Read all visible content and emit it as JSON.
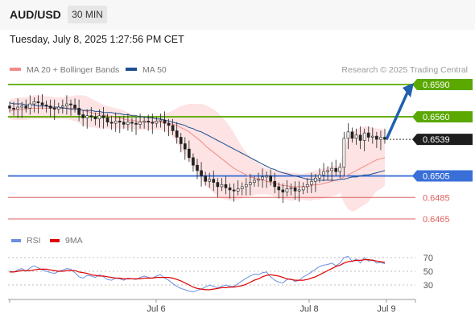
{
  "header": {
    "symbol": "AUD/USD",
    "timeframe": "30 MIN"
  },
  "timestamp": "Tuesday, July 8, 2025 1:27:56 PM CET",
  "credit": "Research © 2025 Trading Central",
  "colors": {
    "resistance": "#5aa800",
    "pivot": "#3a6fd8",
    "support": "#e06060",
    "current": "#1d1d1d",
    "ma20": "#f28c8c",
    "ma50": "#1f4f91",
    "bollinger_fill": "#fde3e3",
    "rsi": "#6a8fe0",
    "rsi_ma": "#e00000",
    "arrow": "#2060b0"
  },
  "chart_data": [
    {
      "type": "candlestick",
      "legend": [
        {
          "label": "MA 20 + Bollinger Bands",
          "color": "#f28c8c"
        },
        {
          "label": "MA 50",
          "color": "#1f4f91"
        }
      ],
      "levels": [
        {
          "value": 0.659,
          "label": "0.6590",
          "kind": "resistance"
        },
        {
          "value": 0.656,
          "label": "0.6560",
          "kind": "resistance"
        },
        {
          "value": 0.6539,
          "label": "0.6539",
          "kind": "current"
        },
        {
          "value": 0.6505,
          "label": "0.6505",
          "kind": "pivot"
        },
        {
          "value": 0.6485,
          "label": "0.6485",
          "kind": "support"
        },
        {
          "value": 0.6465,
          "label": "0.6465",
          "kind": "support"
        }
      ],
      "x_ticks": [
        "Jul 6",
        "Jul 8",
        "Jul 9"
      ],
      "ylim": [
        0.6456,
        0.6605
      ],
      "projection": {
        "from": 0.6539,
        "to": 0.659
      },
      "close": [
        0.6568,
        0.6567,
        0.6569,
        0.657,
        0.6568,
        0.6572,
        0.6574,
        0.6573,
        0.6571,
        0.657,
        0.6568,
        0.6567,
        0.6569,
        0.657,
        0.6572,
        0.6571,
        0.6568,
        0.6562,
        0.6559,
        0.6561,
        0.656,
        0.6558,
        0.6561,
        0.6559,
        0.6555,
        0.6554,
        0.6556,
        0.6555,
        0.6553,
        0.6555,
        0.6554,
        0.6553,
        0.6555,
        0.6556,
        0.6555,
        0.6554,
        0.6556,
        0.6557,
        0.6554,
        0.6552,
        0.6547,
        0.6541,
        0.6535,
        0.653,
        0.6522,
        0.6515,
        0.651,
        0.6505,
        0.65,
        0.6502,
        0.6499,
        0.6495,
        0.6497,
        0.6494,
        0.6492,
        0.6491,
        0.6493,
        0.6495,
        0.6497,
        0.6499,
        0.6501,
        0.6502,
        0.6504,
        0.6505,
        0.65,
        0.6495,
        0.6492,
        0.649,
        0.6493,
        0.6494,
        0.6491,
        0.6492,
        0.6495,
        0.6497,
        0.65,
        0.6503,
        0.6506,
        0.6509,
        0.651,
        0.6512,
        0.6509,
        0.6513,
        0.654,
        0.6546,
        0.654,
        0.6543,
        0.6538,
        0.6545,
        0.6541,
        0.6542,
        0.6539,
        0.6541,
        0.6539
      ],
      "ma20": [
        0.6566,
        0.6566,
        0.6567,
        0.6567,
        0.6567,
        0.6568,
        0.6568,
        0.6568,
        0.6568,
        0.6568,
        0.6568,
        0.6568,
        0.6568,
        0.6568,
        0.6568,
        0.6568,
        0.6568,
        0.6567,
        0.6566,
        0.6565,
        0.6564,
        0.6563,
        0.6563,
        0.6562,
        0.6561,
        0.656,
        0.6559,
        0.6559,
        0.6558,
        0.6557,
        0.6557,
        0.6556,
        0.6555,
        0.6555,
        0.6555,
        0.6555,
        0.6555,
        0.6555,
        0.6555,
        0.6554,
        0.6553,
        0.6552,
        0.655,
        0.6548,
        0.6546,
        0.6543,
        0.654,
        0.6537,
        0.6533,
        0.653,
        0.6527,
        0.6524,
        0.6521,
        0.6518,
        0.6515,
        0.6512,
        0.651,
        0.6508,
        0.6506,
        0.6504,
        0.6503,
        0.6502,
        0.6501,
        0.65,
        0.6499,
        0.6498,
        0.6497,
        0.6496,
        0.6496,
        0.6495,
        0.6495,
        0.6495,
        0.6495,
        0.6495,
        0.6496,
        0.6497,
        0.6497,
        0.6498,
        0.6499,
        0.65,
        0.6501,
        0.6502,
        0.6504,
        0.6506,
        0.6508,
        0.651,
        0.6512,
        0.6514,
        0.6516,
        0.6518,
        0.652,
        0.6521,
        0.6522
      ],
      "ma50": [
        0.6573,
        0.6572,
        0.6572,
        0.6572,
        0.6571,
        0.6571,
        0.6571,
        0.657,
        0.657,
        0.657,
        0.6569,
        0.6569,
        0.6569,
        0.6568,
        0.6568,
        0.6567,
        0.6567,
        0.6567,
        0.6566,
        0.6566,
        0.6566,
        0.6565,
        0.6565,
        0.6564,
        0.6564,
        0.6564,
        0.6563,
        0.6563,
        0.6562,
        0.6562,
        0.6561,
        0.6561,
        0.656,
        0.656,
        0.6559,
        0.6559,
        0.6558,
        0.6558,
        0.6557,
        0.6556,
        0.6555,
        0.6554,
        0.6553,
        0.6552,
        0.655,
        0.6549,
        0.6547,
        0.6546,
        0.6544,
        0.6542,
        0.654,
        0.6538,
        0.6536,
        0.6534,
        0.6532,
        0.653,
        0.6528,
        0.6526,
        0.6524,
        0.6522,
        0.652,
        0.6518,
        0.6516,
        0.6514,
        0.6512,
        0.6511,
        0.6509,
        0.6508,
        0.6507,
        0.6506,
        0.6505,
        0.6504,
        0.6503,
        0.6502,
        0.6502,
        0.6501,
        0.6501,
        0.6501,
        0.6501,
        0.6501,
        0.6501,
        0.6502,
        0.6502,
        0.6503,
        0.6504,
        0.6504,
        0.6505,
        0.6506,
        0.6506,
        0.6507,
        0.6508,
        0.6509,
        0.651
      ],
      "bb_upper": [
        0.6576,
        0.6577,
        0.6578,
        0.6578,
        0.6578,
        0.6579,
        0.658,
        0.658,
        0.658,
        0.6579,
        0.6579,
        0.6578,
        0.6578,
        0.6578,
        0.6579,
        0.6579,
        0.658,
        0.658,
        0.658,
        0.6579,
        0.6577,
        0.6575,
        0.6573,
        0.6571,
        0.657,
        0.6569,
        0.6568,
        0.6567,
        0.6566,
        0.6564,
        0.6563,
        0.6562,
        0.6561,
        0.6561,
        0.6561,
        0.6561,
        0.6561,
        0.6562,
        0.6563,
        0.6564,
        0.6566,
        0.6568,
        0.657,
        0.6571,
        0.6572,
        0.6572,
        0.6572,
        0.6572,
        0.6571,
        0.6569,
        0.6567,
        0.6564,
        0.656,
        0.6556,
        0.6551,
        0.6545,
        0.6538,
        0.6532,
        0.6527,
        0.6523,
        0.652,
        0.6517,
        0.6514,
        0.6512,
        0.6511,
        0.651,
        0.651,
        0.6509,
        0.6509,
        0.6508,
        0.6508,
        0.6507,
        0.6507,
        0.6508,
        0.6509,
        0.651,
        0.6511,
        0.6512,
        0.6513,
        0.6514,
        0.6514,
        0.6515,
        0.653,
        0.654,
        0.6545,
        0.6548,
        0.655,
        0.6551,
        0.6551,
        0.655,
        0.6549,
        0.6549,
        0.6548
      ],
      "bb_lower": [
        0.6558,
        0.6557,
        0.6557,
        0.6557,
        0.6557,
        0.6558,
        0.6558,
        0.6558,
        0.6558,
        0.6558,
        0.6558,
        0.6558,
        0.6558,
        0.6558,
        0.6558,
        0.6557,
        0.6556,
        0.6554,
        0.6552,
        0.6551,
        0.655,
        0.655,
        0.6549,
        0.6549,
        0.6549,
        0.6549,
        0.6549,
        0.6549,
        0.6549,
        0.6549,
        0.6549,
        0.6548,
        0.6548,
        0.6548,
        0.6548,
        0.6548,
        0.6548,
        0.6548,
        0.6547,
        0.6545,
        0.6541,
        0.6536,
        0.653,
        0.6525,
        0.652,
        0.6514,
        0.6508,
        0.6502,
        0.6497,
        0.6493,
        0.6489,
        0.6486,
        0.6484,
        0.6483,
        0.6482,
        0.6482,
        0.6483,
        0.6484,
        0.6485,
        0.6486,
        0.6487,
        0.6488,
        0.6488,
        0.6488,
        0.6487,
        0.6486,
        0.6485,
        0.6483,
        0.6483,
        0.6482,
        0.6482,
        0.6483,
        0.6483,
        0.6482,
        0.6482,
        0.6483,
        0.6483,
        0.6484,
        0.6485,
        0.6486,
        0.6487,
        0.6489,
        0.648,
        0.6474,
        0.6472,
        0.6473,
        0.6476,
        0.6478,
        0.6481,
        0.6486,
        0.6491,
        0.6493,
        0.6496
      ]
    },
    {
      "type": "line",
      "legend": [
        {
          "label": "RSI",
          "color": "#6a8fe0"
        },
        {
          "label": "9MA",
          "color": "#e00000"
        }
      ],
      "ylim": [
        20,
        80
      ],
      "y_ticks": [
        70,
        50,
        30
      ],
      "rsi": [
        50,
        49,
        52,
        54,
        50,
        55,
        58,
        55,
        52,
        50,
        48,
        47,
        50,
        52,
        54,
        53,
        48,
        42,
        40,
        44,
        43,
        41,
        45,
        42,
        38,
        37,
        40,
        39,
        37,
        40,
        39,
        38,
        41,
        43,
        41,
        40,
        43,
        45,
        40,
        37,
        32,
        28,
        25,
        23,
        21,
        20,
        22,
        24,
        27,
        30,
        28,
        26,
        28,
        30,
        28,
        28,
        32,
        36,
        40,
        43,
        46,
        45,
        48,
        49,
        42,
        37,
        34,
        33,
        38,
        39,
        35,
        37,
        42,
        45,
        49,
        53,
        57,
        59,
        60,
        62,
        58,
        62,
        70,
        72,
        64,
        68,
        62,
        70,
        65,
        67,
        62,
        63,
        61
      ],
      "rsi_ma": [
        49,
        49,
        50,
        51,
        51,
        51,
        52,
        53,
        53,
        53,
        52,
        51,
        50,
        50,
        51,
        51,
        51,
        49,
        48,
        47,
        45,
        44,
        43,
        43,
        42,
        41,
        40,
        40,
        39,
        39,
        39,
        39,
        39,
        40,
        40,
        40,
        41,
        41,
        41,
        41,
        40,
        38,
        36,
        33,
        30,
        27,
        25,
        24,
        23,
        23,
        24,
        25,
        26,
        26,
        27,
        27,
        28,
        29,
        31,
        34,
        37,
        39,
        42,
        44,
        45,
        44,
        43,
        41,
        39,
        38,
        37,
        37,
        37,
        38,
        40,
        42,
        45,
        48,
        51,
        54,
        57,
        59,
        62,
        64,
        65,
        66,
        66,
        67,
        67,
        66,
        65,
        64,
        63
      ]
    }
  ]
}
